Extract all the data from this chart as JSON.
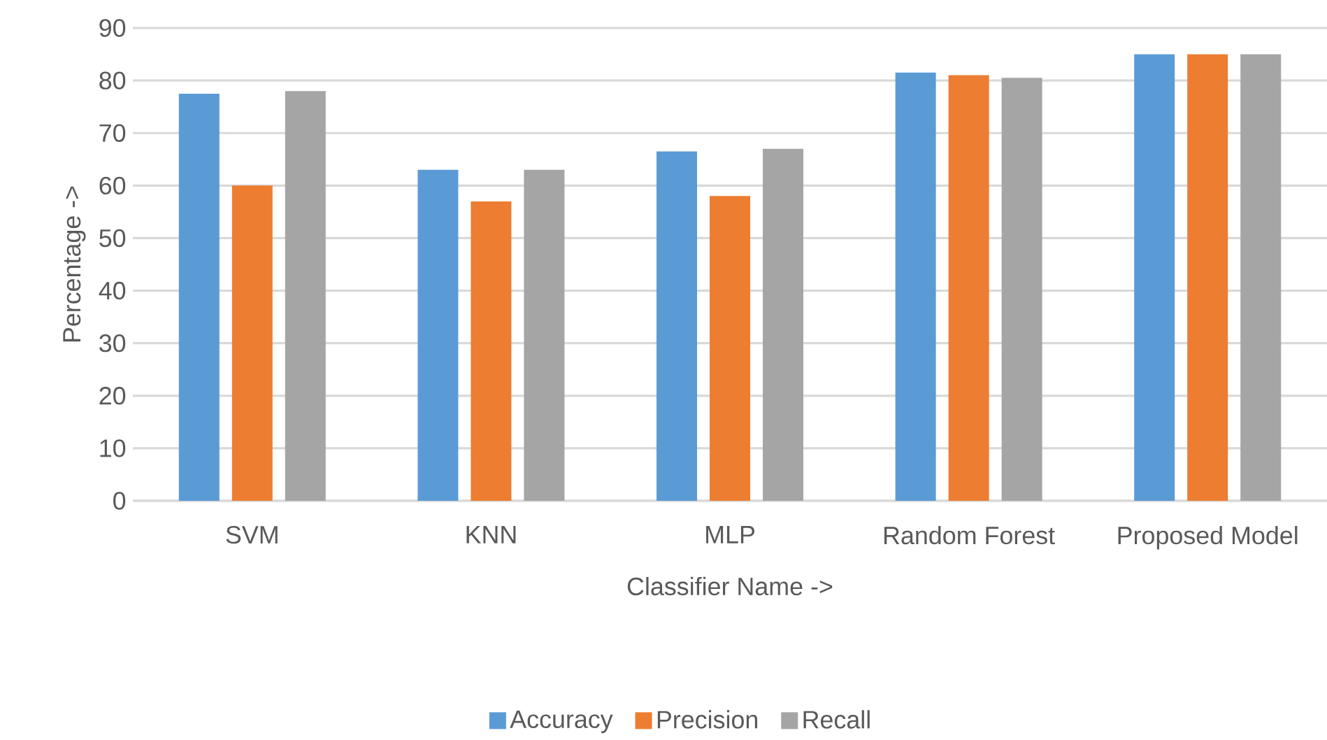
{
  "chart_data": {
    "type": "bar",
    "xlabel": "Classifier Name ->",
    "ylabel": "Percentage ->",
    "categories": [
      "SVM",
      "KNN",
      "MLP",
      "Random Forest",
      "Proposed Model"
    ],
    "series": [
      {
        "name": "Accuracy",
        "color": "#5b9bd5",
        "values": [
          77.5,
          63,
          66.5,
          81.5,
          85
        ]
      },
      {
        "name": "Precision",
        "color": "#ed7d31",
        "values": [
          60,
          57,
          58,
          81,
          85
        ]
      },
      {
        "name": "Recall",
        "color": "#a5a5a5",
        "values": [
          78,
          63,
          67,
          80.5,
          85
        ]
      }
    ],
    "ylim": [
      0,
      90
    ],
    "yticks": [
      0,
      10,
      20,
      30,
      40,
      50,
      60,
      70,
      80,
      90
    ],
    "grid": "y",
    "legend": "bottom"
  }
}
